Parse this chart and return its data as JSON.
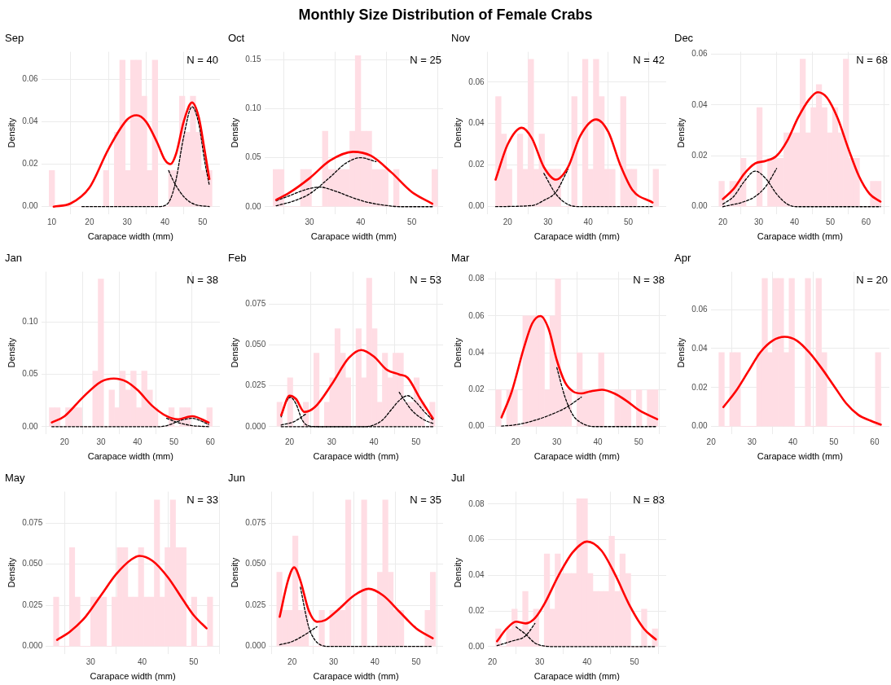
{
  "chart_data": [
    {
      "type": "other",
      "title": "Monthly Size Distribution of Female Crabs"
    },
    {
      "type": "histogram",
      "title": "Sep",
      "xlabel": "Carapace width (mm)",
      "ylabel": "Density",
      "annotations": [
        "N = 40"
      ],
      "grid": true,
      "xlim": [
        7.2,
        54.6
      ],
      "xticks": [
        10,
        20,
        30,
        40,
        50
      ],
      "ylim": [
        -0.0035,
        0.0729
      ],
      "yticks": [
        {
          "value": 0,
          "label": "0.00"
        },
        0.02,
        0.04,
        0.06
      ],
      "color": "#ffdde4",
      "bins": [
        9.3,
        10.74,
        12.18,
        13.62,
        15.06,
        16.5,
        17.94,
        19.38,
        20.82,
        22.26,
        23.7,
        25.14,
        26.58,
        28.02,
        29.46,
        30.9,
        32.34,
        33.78,
        35.22,
        36.66,
        38.1,
        39.54,
        40.98,
        42.42,
        43.86,
        45.3,
        46.74,
        48.18,
        49.62,
        51.06,
        52.5
      ],
      "values": [
        0.017,
        0,
        0,
        0,
        0,
        0,
        0,
        0,
        0,
        0,
        0.017,
        0,
        0.035,
        0.069,
        0.017,
        0.069,
        0.069,
        0.052,
        0.017,
        0.069,
        0,
        0,
        0.017,
        0.017,
        0.052,
        0.035,
        0.052,
        0.035,
        0.017,
        0.017
      ],
      "series": [
        {
          "type": "line",
          "color": "#ff0000",
          "x": [
            10.5,
            15,
            20,
            25,
            30,
            32.5,
            35,
            38,
            40,
            41.5,
            43,
            45,
            47.2,
            49,
            50.5,
            51.8
          ],
          "values": [
            0,
            0.0015,
            0.009,
            0.027,
            0.041,
            0.043,
            0.04,
            0.03,
            0.022,
            0.02,
            0.025,
            0.04,
            0.049,
            0.042,
            0.027,
            0.013
          ]
        },
        {
          "type": "line",
          "color": "#000000",
          "line_style": "dashed",
          "x": [
            41,
            42,
            44,
            46,
            48,
            51.8
          ],
          "values": [
            0.017,
            0.013,
            0.007,
            0.003,
            0.001,
            0
          ]
        },
        {
          "type": "line",
          "color": "#000000",
          "line_style": "dashed",
          "x": [
            18,
            38,
            40,
            41,
            42,
            43,
            45,
            47.2,
            49,
            50.5,
            51.8
          ],
          "values": [
            0,
            0,
            0.0005,
            0.002,
            0.006,
            0.013,
            0.033,
            0.047,
            0.039,
            0.022,
            0.01
          ]
        }
      ]
    },
    {
      "type": "histogram",
      "title": "Oct",
      "xlabel": "Carapace width (mm)",
      "ylabel": "Density",
      "annotations": [
        "N = 25"
      ],
      "grid": true,
      "xlim": [
        21.2,
        56.1
      ],
      "xticks": [
        30,
        40,
        50
      ],
      "ylim": [
        -0.0075,
        0.158
      ],
      "yticks": [
        {
          "value": 0,
          "label": "0.00"
        },
        0.05,
        {
          "value": 0.1,
          "label": "0.10"
        },
        0.15
      ],
      "color": "#ffdde4",
      "bins": [
        22.9,
        23.97,
        25.04,
        26.11,
        27.18,
        28.25,
        29.32,
        30.39,
        31.46,
        32.53,
        33.6,
        34.67,
        35.74,
        36.81,
        37.88,
        38.95,
        40.02,
        41.09,
        42.16,
        43.23,
        44.3,
        45.37,
        46.44,
        47.51,
        48.58,
        49.65,
        50.72,
        51.79,
        52.86,
        53.93,
        55.0
      ],
      "values": [
        0.038,
        0.038,
        0,
        0,
        0,
        0.038,
        0.038,
        0,
        0,
        0.077,
        0.038,
        0.038,
        0.038,
        0.038,
        0.077,
        0.154,
        0.077,
        0.077,
        0.038,
        0.038,
        0.038,
        0,
        0.038,
        0,
        0,
        0,
        0,
        0,
        0,
        0.038
      ],
      "series": [
        {
          "type": "line",
          "color": "#ff0000",
          "x": [
            23.5,
            26,
            30,
            34,
            38.5,
            42,
            46,
            50,
            54
          ],
          "values": [
            0.007,
            0.014,
            0.029,
            0.047,
            0.056,
            0.052,
            0.035,
            0.015,
            0.003
          ]
        },
        {
          "type": "line",
          "color": "#000000",
          "line_style": "dashed",
          "x": [
            23.5,
            26,
            29,
            32,
            35,
            38,
            41,
            44,
            48,
            54
          ],
          "values": [
            0.006,
            0.011,
            0.017,
            0.02,
            0.016,
            0.01,
            0.005,
            0.002,
            0,
            0
          ]
        },
        {
          "type": "line",
          "color": "#000000",
          "line_style": "dashed",
          "x": [
            23.5,
            27,
            30,
            34,
            37,
            40,
            43
          ],
          "values": [
            0.001,
            0.006,
            0.013,
            0.03,
            0.044,
            0.05,
            0.046
          ]
        }
      ]
    },
    {
      "type": "histogram",
      "title": "Nov",
      "xlabel": "Carapace width (mm)",
      "ylabel": "Density",
      "annotations": [
        "N = 42"
      ],
      "grid": true,
      "xlim": [
        15.0,
        59.4
      ],
      "xticks": [
        20,
        30,
        40,
        50
      ],
      "ylim": [
        -0.0036,
        0.0746
      ],
      "yticks": [
        {
          "value": 0,
          "label": "0.00"
        },
        0.02,
        0.04,
        0.06
      ],
      "color": "#ffdde4",
      "bins": [
        17,
        18.35,
        19.7,
        21.05,
        22.4,
        23.75,
        25.1,
        26.45,
        27.8,
        29.15,
        30.5,
        31.85,
        33.2,
        34.55,
        35.9,
        37.25,
        38.6,
        39.95,
        41.3,
        42.65,
        44,
        45.35,
        46.7,
        48.05,
        49.4,
        50.75,
        52.1,
        53.45,
        54.8,
        56.15,
        57.5
      ],
      "values": [
        0.053,
        0.035,
        0.018,
        0,
        0.035,
        0.018,
        0.071,
        0.018,
        0.035,
        0.018,
        0.018,
        0.018,
        0,
        0,
        0.053,
        0,
        0.071,
        0.018,
        0.071,
        0.053,
        0.018,
        0.018,
        0,
        0.053,
        0.018,
        0.018,
        0,
        0,
        0,
        0.018
      ],
      "series": [
        {
          "type": "line",
          "color": "#ff0000",
          "x": [
            17,
            20,
            23.5,
            26,
            29,
            32,
            35,
            38,
            42,
            45,
            48,
            51,
            56
          ],
          "values": [
            0.013,
            0.03,
            0.038,
            0.033,
            0.019,
            0.013,
            0.019,
            0.034,
            0.042,
            0.036,
            0.02,
            0.008,
            0.002
          ]
        },
        {
          "type": "line",
          "color": "#000000",
          "line_style": "dashed",
          "x": [
            29,
            32,
            35,
            38,
            56
          ],
          "values": [
            0.016,
            0.006,
            0.001,
            0,
            0
          ]
        },
        {
          "type": "line",
          "color": "#000000",
          "line_style": "dashed",
          "x": [
            17,
            26,
            29,
            32,
            35
          ],
          "values": [
            0,
            0.0005,
            0.003,
            0.007,
            0.018
          ]
        }
      ]
    },
    {
      "type": "histogram",
      "title": "Dec",
      "xlabel": "Carapace width (mm)",
      "ylabel": "Density",
      "annotations": [
        "N = 68"
      ],
      "grid": true,
      "xlim": [
        16.6,
        66.5
      ],
      "xticks": [
        20,
        30,
        40,
        50,
        60
      ],
      "ylim": [
        -0.0029,
        0.0609
      ],
      "yticks": [
        {
          "value": 0,
          "label": "0.00"
        },
        0.02,
        0.04,
        0.06
      ],
      "color": "#ffdde4",
      "bins": [
        18.9,
        20.41,
        21.92,
        23.43,
        24.94,
        26.45,
        27.96,
        29.47,
        30.98,
        32.49,
        34,
        35.51,
        37.02,
        38.53,
        40.04,
        41.55,
        43.06,
        44.57,
        46.08,
        47.59,
        49.1,
        50.61,
        52.12,
        53.63,
        55.14,
        56.65,
        58.16,
        59.67,
        61.18,
        62.69,
        64.2
      ],
      "values": [
        0.01,
        0,
        0.01,
        0.01,
        0.019,
        0,
        0,
        0.039,
        0,
        0.019,
        0.019,
        0.019,
        0.029,
        0.029,
        0.029,
        0.058,
        0.029,
        0.039,
        0.048,
        0.039,
        0.029,
        0.039,
        0.029,
        0.058,
        0.019,
        0.019,
        0,
        0,
        0.01,
        0.01
      ],
      "series": [
        {
          "type": "line",
          "color": "#ff0000",
          "x": [
            20,
            23,
            26,
            29,
            32,
            35,
            38,
            41,
            44,
            46.5,
            49,
            52,
            55,
            58,
            61,
            64
          ],
          "values": [
            0.003,
            0.007,
            0.013,
            0.017,
            0.018,
            0.02,
            0.026,
            0.035,
            0.042,
            0.045,
            0.043,
            0.035,
            0.023,
            0.012,
            0.005,
            0.002
          ]
        },
        {
          "type": "line",
          "color": "#000000",
          "line_style": "dashed",
          "x": [
            20,
            23,
            26,
            29,
            32,
            35,
            38,
            41,
            64
          ],
          "values": [
            0.001,
            0.004,
            0.01,
            0.014,
            0.011,
            0.005,
            0.001,
            0,
            0
          ]
        },
        {
          "type": "line",
          "color": "#000000",
          "line_style": "dashed",
          "x": [
            20,
            26,
            29,
            32,
            35
          ],
          "values": [
            0,
            0.002,
            0.004,
            0.008,
            0.015
          ]
        }
      ]
    },
    {
      "type": "histogram",
      "title": "Jan",
      "xlabel": "Carapace width (mm)",
      "ylabel": "Density",
      "annotations": [
        "N = 38"
      ],
      "grid": true,
      "xlim": [
        13.6,
        62.6
      ],
      "xticks": [
        20,
        30,
        40,
        50,
        60
      ],
      "ylim": [
        -0.007,
        0.148
      ],
      "yticks": [
        {
          "value": 0,
          "label": "0.00"
        },
        0.05,
        {
          "value": 0.1,
          "label": "0.10"
        }
      ],
      "color": "#ffdde4",
      "bins": [
        15.8,
        17.29,
        18.78,
        20.27,
        21.76,
        23.25,
        24.74,
        26.23,
        27.72,
        29.21,
        30.7,
        32.19,
        33.68,
        35.17,
        36.66,
        38.15,
        39.64,
        41.13,
        42.62,
        44.11,
        45.6,
        47.09,
        48.58,
        50.07,
        51.56,
        53.05,
        54.54,
        56.03,
        57.52,
        59.01,
        60.5
      ],
      "values": [
        0.018,
        0.018,
        0,
        0.018,
        0.018,
        0.018,
        0,
        0,
        0.053,
        0.141,
        0,
        0.035,
        0.018,
        0.053,
        0.035,
        0.053,
        0.018,
        0.053,
        0.035,
        0.018,
        0,
        0,
        0.018,
        0,
        0.018,
        0.018,
        0,
        0,
        0,
        0.018
      ],
      "series": [
        {
          "type": "line",
          "color": "#ff0000",
          "x": [
            16.5,
            20,
            25,
            30,
            33.5,
            37,
            40,
            44,
            48,
            51,
            55,
            59.5
          ],
          "values": [
            0.004,
            0.01,
            0.028,
            0.043,
            0.046,
            0.043,
            0.035,
            0.02,
            0.01,
            0.007,
            0.01,
            0.004
          ]
        },
        {
          "type": "line",
          "color": "#000000",
          "line_style": "dashed",
          "x": [
            48,
            51,
            55,
            59.5
          ],
          "values": [
            0.008,
            0.004,
            0.001,
            0
          ]
        },
        {
          "type": "line",
          "color": "#000000",
          "line_style": "dashed",
          "x": [
            16.5,
            46,
            49,
            51,
            53,
            55,
            57,
            59.5
          ],
          "values": [
            0,
            0,
            0.002,
            0.005,
            0.007,
            0.008,
            0.006,
            0.002
          ]
        }
      ]
    },
    {
      "type": "histogram",
      "title": "Feb",
      "xlabel": "Carapace width (mm)",
      "ylabel": "Density",
      "annotations": [
        "N = 53"
      ],
      "grid": true,
      "xlim": [
        15.1,
        56.4
      ],
      "xticks": [
        20,
        30,
        40,
        50
      ],
      "ylim": [
        -0.0045,
        0.095
      ],
      "yticks": [
        {
          "value": 0,
          "label": "0.000"
        },
        0.025,
        {
          "value": 0.05,
          "label": "0.050"
        },
        0.075
      ],
      "color": "#ffdde4",
      "bins": [
        17,
        18.25,
        19.5,
        20.75,
        22,
        23.25,
        24.5,
        25.75,
        27,
        28.25,
        29.5,
        30.75,
        32,
        33.25,
        34.5,
        35.75,
        37,
        38.25,
        39.5,
        40.75,
        42,
        43.25,
        44.5,
        45.75,
        47,
        48.25,
        49.5,
        50.75,
        52,
        53.25,
        54.5
      ],
      "values": [
        0.015,
        0,
        0.03,
        0,
        0,
        0.015,
        0,
        0.045,
        0,
        0.015,
        0.03,
        0.06,
        0.045,
        0.03,
        0,
        0.06,
        0.03,
        0.091,
        0.06,
        0.015,
        0.045,
        0.03,
        0.045,
        0.045,
        0.015,
        0.015,
        0.03,
        0.015,
        0,
        0.015
      ],
      "series": [
        {
          "type": "line",
          "color": "#ff0000",
          "x": [
            18,
            20,
            21.5,
            23.5,
            26,
            30,
            34,
            37,
            40,
            43,
            46,
            48,
            51,
            54
          ],
          "values": [
            0.007,
            0.019,
            0.017,
            0.009,
            0.012,
            0.026,
            0.042,
            0.047,
            0.043,
            0.035,
            0.032,
            0.03,
            0.017,
            0.005
          ]
        },
        {
          "type": "line",
          "color": "#000000",
          "line_style": "dashed",
          "x": [
            18,
            19,
            20.2,
            21.5,
            23,
            24.5,
            27,
            54
          ],
          "values": [
            0.006,
            0.014,
            0.018,
            0.014,
            0.004,
            0.0005,
            0,
            0
          ]
        },
        {
          "type": "line",
          "color": "#000000",
          "line_style": "dashed",
          "x": [
            18,
            21,
            24,
            27,
            30,
            34,
            37,
            40,
            43,
            46,
            49,
            52,
            54
          ],
          "values": [
            0.001,
            0.003,
            0.008,
            null,
            null,
            null,
            null,
            null,
            null,
            0.021,
            0.01,
            0.004,
            0.002
          ]
        },
        {
          "type": "line",
          "color": "#000000",
          "line_style": "dashed",
          "x": [
            18,
            38,
            40,
            42,
            44,
            46,
            48,
            50,
            52,
            54
          ],
          "values": [
            0,
            0,
            0.001,
            0.004,
            0.01,
            0.016,
            0.019,
            0.015,
            0.009,
            0.004
          ]
        }
      ]
    },
    {
      "type": "histogram",
      "title": "Mar",
      "xlabel": "Carapace width (mm)",
      "ylabel": "Density",
      "annotations": [
        "N = 38"
      ],
      "grid": true,
      "xlim": [
        13.1,
        56.7
      ],
      "xticks": [
        20,
        30,
        40,
        50
      ],
      "ylim": [
        -0.004,
        0.084
      ],
      "yticks": [
        {
          "value": 0,
          "label": "0.00"
        },
        0.02,
        0.04,
        0.06,
        0.08
      ],
      "color": "#ffdde4",
      "bins": [
        15.1,
        16.42,
        17.74,
        19.06,
        20.38,
        21.7,
        23.02,
        24.34,
        25.66,
        26.98,
        28.3,
        29.62,
        30.94,
        32.26,
        33.58,
        34.9,
        36.22,
        37.54,
        38.86,
        40.18,
        41.5,
        42.82,
        44.14,
        45.46,
        46.78,
        48.1,
        49.42,
        50.74,
        52.06,
        53.38,
        54.7
      ],
      "values": [
        0.02,
        0,
        0.02,
        0.02,
        0,
        0.06,
        0.06,
        0.06,
        0.06,
        0.02,
        0.06,
        0.08,
        0.02,
        0.02,
        0,
        0.04,
        0.02,
        0.02,
        0.02,
        0.04,
        0,
        0,
        0.02,
        0.02,
        0.02,
        0,
        0.02,
        0,
        0.02,
        0.02
      ],
      "series": [
        {
          "type": "line",
          "color": "#ff0000",
          "x": [
            16.5,
            19,
            22,
            24,
            26,
            28,
            30,
            32,
            34,
            36,
            38,
            41,
            44,
            47,
            50,
            54.5
          ],
          "values": [
            0.005,
            0.019,
            0.043,
            0.056,
            0.06,
            0.053,
            0.036,
            0.024,
            0.019,
            0.018,
            0.019,
            0.02,
            0.018,
            0.014,
            0.009,
            0.004
          ]
        },
        {
          "type": "line",
          "color": "#000000",
          "line_style": "dashed",
          "x": [
            30,
            32,
            34,
            36,
            39,
            54.5
          ],
          "values": [
            0.032,
            0.016,
            0.006,
            0.002,
            0,
            0
          ]
        },
        {
          "type": "line",
          "color": "#000000",
          "line_style": "dashed",
          "x": [
            16.5,
            20,
            24,
            28,
            32,
            36
          ],
          "values": [
            0.0003,
            0.001,
            0.003,
            0.006,
            0.01,
            0.016
          ]
        }
      ]
    },
    {
      "type": "histogram",
      "title": "Apr",
      "xlabel": "Carapace width (mm)",
      "ylabel": "Density",
      "annotations": [
        "N = 20"
      ],
      "grid": true,
      "xlim": [
        19.9,
        63.6
      ],
      "xticks": [
        20,
        30,
        40,
        50,
        60
      ],
      "ylim": [
        -0.0038,
        0.0794
      ],
      "yticks": [
        {
          "value": 0,
          "label": "0.00"
        },
        0.02,
        0.04,
        0.06
      ],
      "color": "#ffdde4",
      "bins": [
        21.9,
        23.22,
        24.54,
        25.86,
        27.18,
        28.5,
        29.82,
        31.14,
        32.46,
        33.78,
        35.1,
        36.42,
        37.74,
        39.06,
        40.38,
        41.7,
        43.02,
        44.34,
        45.66,
        46.98,
        48.3,
        49.62,
        50.94,
        52.26,
        53.58,
        54.9,
        56.22,
        57.54,
        58.86,
        60.18,
        61.5
      ],
      "values": [
        0.038,
        0,
        0.038,
        0.038,
        0,
        0,
        0,
        0.038,
        0.076,
        0.038,
        0.076,
        0.076,
        0.038,
        0.076,
        0,
        0,
        0.076,
        0,
        0.076,
        0.038,
        0,
        0,
        0,
        0,
        0,
        0,
        0,
        0,
        0,
        0.038
      ],
      "series": [
        {
          "type": "line",
          "color": "#ff0000",
          "x": [
            23,
            26,
            29,
            32,
            35,
            38,
            41,
            44,
            47,
            50,
            53,
            56,
            59,
            61.5
          ],
          "values": [
            0.01,
            0.018,
            0.028,
            0.038,
            0.044,
            0.046,
            0.044,
            0.038,
            0.03,
            0.021,
            0.012,
            0.006,
            0.003,
            0.001
          ]
        }
      ]
    },
    {
      "type": "histogram",
      "title": "May",
      "xlabel": "Carapace width (mm)",
      "ylabel": "Density",
      "annotations": [
        "N = 33"
      ],
      "grid": true,
      "xlim": [
        21.3,
        55.1
      ],
      "xticks": [
        30,
        40,
        50
      ],
      "ylim": [
        -0.0045,
        0.094
      ],
      "yticks": [
        {
          "value": 0,
          "label": "0.000"
        },
        0.025,
        {
          "value": 0.05,
          "label": "0.050"
        },
        0.075
      ],
      "color": "#ffdde4",
      "bins": [
        22.8,
        23.83,
        24.86,
        25.89,
        26.92,
        27.95,
        28.98,
        30.01,
        31.04,
        32.07,
        33.1,
        34.13,
        35.16,
        36.19,
        37.22,
        38.25,
        39.28,
        40.31,
        41.34,
        42.37,
        43.4,
        44.43,
        45.46,
        46.49,
        47.52,
        48.55,
        49.58,
        50.61,
        51.64,
        52.67,
        53.7
      ],
      "values": [
        0.03,
        0,
        0,
        0.06,
        0.03,
        0,
        0,
        0.03,
        0.03,
        0.03,
        0,
        0.03,
        0.06,
        0.06,
        0.03,
        0.03,
        0.06,
        0.03,
        0.03,
        0.089,
        0.03,
        0.06,
        0.089,
        0.06,
        0.06,
        0,
        0.03,
        0,
        0,
        0.03
      ],
      "series": [
        {
          "type": "line",
          "color": "#ff0000",
          "x": [
            23.5,
            26,
            29,
            32,
            35,
            38,
            39.5,
            42,
            45,
            48,
            50,
            52.5
          ],
          "values": [
            0.004,
            0.009,
            0.018,
            0.031,
            0.044,
            0.053,
            0.055,
            0.052,
            0.042,
            0.028,
            0.019,
            0.011
          ]
        }
      ]
    },
    {
      "type": "histogram",
      "title": "Jun",
      "xlabel": "Carapace width (mm)",
      "ylabel": "Density",
      "annotations": [
        "N = 35"
      ],
      "grid": true,
      "xlim": [
        14.4,
        56.5
      ],
      "xticks": [
        20,
        30,
        40,
        50
      ],
      "ylim": [
        -0.0045,
        0.094
      ],
      "yticks": [
        {
          "value": 0,
          "label": "0.000"
        },
        0.025,
        {
          "value": 0.05,
          "label": "0.050"
        },
        0.075
      ],
      "color": "#ffdde4",
      "bins": [
        16.3,
        17.58,
        18.86,
        20.14,
        21.42,
        22.7,
        23.98,
        25.26,
        26.54,
        27.82,
        29.1,
        30.38,
        31.66,
        32.94,
        34.22,
        35.5,
        36.78,
        38.06,
        39.34,
        40.62,
        41.9,
        43.18,
        44.46,
        45.74,
        47.02,
        48.3,
        49.58,
        50.86,
        52.14,
        53.42,
        54.7
      ],
      "values": [
        0.045,
        0.022,
        0.022,
        0.067,
        0.022,
        0.022,
        0,
        0,
        0.022,
        0,
        0.022,
        0.022,
        0.022,
        0.089,
        0,
        0,
        0.089,
        0,
        0,
        0.045,
        0.089,
        0.045,
        0.022,
        0.022,
        0,
        0,
        0,
        0,
        0.022,
        0.045
      ],
      "series": [
        {
          "type": "line",
          "color": "#ff0000",
          "x": [
            17,
            19,
            20.5,
            22,
            24,
            26,
            28,
            31,
            35,
            38.5,
            42,
            46,
            50,
            54
          ],
          "values": [
            0.018,
            0.04,
            0.048,
            0.04,
            0.022,
            0.015,
            0.016,
            0.022,
            0.031,
            0.035,
            0.031,
            0.021,
            0.011,
            0.005
          ]
        },
        {
          "type": "line",
          "color": "#000000",
          "line_style": "dashed",
          "x": [
            22,
            24,
            25.5,
            27,
            29,
            54
          ],
          "values": [
            0.036,
            0.012,
            0.004,
            0.0008,
            0,
            0
          ]
        },
        {
          "type": "line",
          "color": "#000000",
          "line_style": "dashed",
          "x": [
            17,
            20,
            23,
            26
          ],
          "values": [
            0.001,
            0.003,
            0.007,
            0.012
          ]
        }
      ]
    },
    {
      "type": "histogram",
      "title": "Jul",
      "xlabel": "Carapace width (mm)",
      "ylabel": "Density",
      "annotations": [
        "N = 83"
      ],
      "grid": true,
      "xlim": [
        19.0,
        56.7
      ],
      "xticks": [
        20,
        30,
        40,
        50
      ],
      "ylim": [
        -0.0041,
        0.087
      ],
      "yticks": [
        {
          "value": 0,
          "label": "0.00"
        },
        0.02,
        0.04,
        0.06,
        0.08
      ],
      "color": "#ffdde4",
      "bins": [
        20.7,
        21.84,
        22.98,
        24.12,
        25.26,
        26.4,
        27.54,
        28.68,
        29.82,
        30.96,
        32.1,
        33.24,
        34.38,
        35.52,
        36.66,
        37.8,
        38.94,
        40.08,
        41.22,
        42.36,
        43.5,
        44.64,
        45.78,
        46.92,
        48.06,
        49.2,
        50.34,
        51.48,
        52.62,
        53.76,
        54.9
      ],
      "values": [
        0.01,
        0,
        0.01,
        0.021,
        0.01,
        0.031,
        0.01,
        0.021,
        0,
        0.052,
        0.021,
        0.052,
        0.041,
        0.041,
        0.041,
        0.083,
        0.083,
        0.041,
        0.031,
        0.031,
        0.031,
        0.062,
        0.031,
        0.052,
        0.041,
        0,
        0,
        0.021,
        0,
        0.01
      ],
      "series": [
        {
          "type": "line",
          "color": "#ff0000",
          "x": [
            21,
            23,
            25,
            27,
            29,
            31,
            34,
            37,
            40,
            43,
            46,
            49,
            52,
            54.5
          ],
          "values": [
            0.003,
            0.01,
            0.014,
            0.013,
            0.016,
            0.024,
            0.04,
            0.053,
            0.059,
            0.054,
            0.04,
            0.023,
            0.01,
            0.004
          ]
        },
        {
          "type": "line",
          "color": "#000000",
          "line_style": "dashed",
          "x": [
            25,
            27,
            29,
            31,
            33,
            54.5
          ],
          "values": [
            0.011,
            0.007,
            0.002,
            0.0003,
            0,
            0
          ]
        },
        {
          "type": "line",
          "color": "#000000",
          "line_style": "dashed",
          "x": [
            21,
            24,
            27,
            29
          ],
          "values": [
            0.0005,
            0.003,
            0.006,
            0.013
          ]
        }
      ]
    }
  ]
}
